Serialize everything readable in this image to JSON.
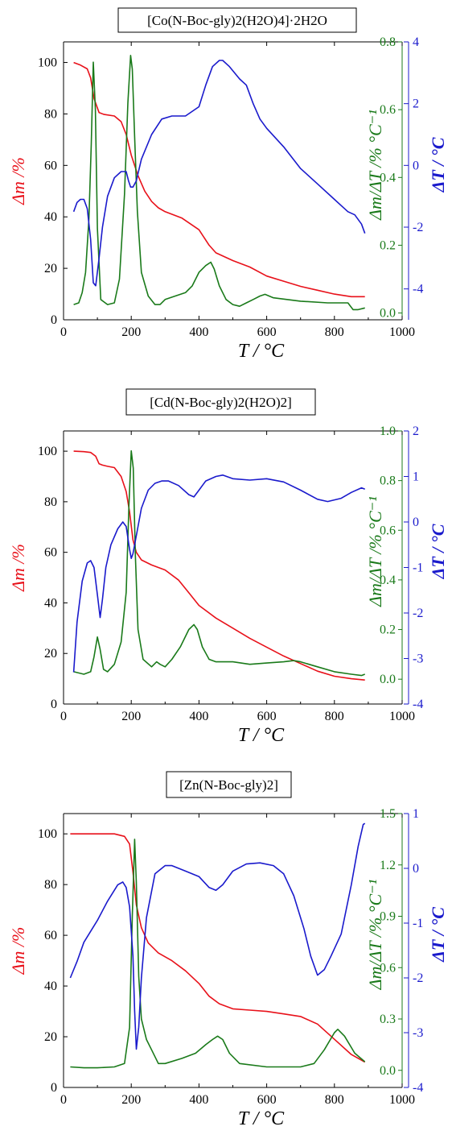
{
  "chart_data": [
    {
      "type": "line",
      "title": "[Co(N-Boc-gly)2(H2O)4]·2H2O",
      "xlabel": "T / °C",
      "ylabel_left": "Δm /%",
      "ylabel_right1": "Δm/ΔT /% °C⁻¹",
      "ylabel_right2": "ΔT / °C",
      "xlim": [
        0,
        1000
      ],
      "ylim_left": [
        0,
        108
      ],
      "ylim_right1": [
        -0.02,
        0.8
      ],
      "ylim_right2": [
        -5,
        4
      ],
      "xticks": [
        0,
        200,
        400,
        600,
        800,
        1000
      ],
      "yticks_left": [
        0,
        20,
        40,
        60,
        80,
        100
      ],
      "yticks_right1": [
        "0.0",
        "0.2",
        "0.4",
        "0.6",
        "0.8"
      ],
      "yticks_right2": [
        "-4",
        "-2",
        "0",
        "2",
        "4"
      ],
      "series": [
        {
          "name": "Δm",
          "axis": "left",
          "color": "#e8111a",
          "x": [
            30,
            50,
            70,
            80,
            90,
            105,
            120,
            150,
            170,
            185,
            200,
            220,
            240,
            260,
            280,
            300,
            350,
            400,
            430,
            450,
            500,
            550,
            600,
            650,
            700,
            750,
            800,
            850,
            890
          ],
          "y": [
            100,
            99,
            97.5,
            94,
            86,
            80.5,
            79.8,
            79.2,
            77,
            72,
            64,
            56,
            50,
            46,
            43.5,
            42,
            39.5,
            35,
            29,
            26,
            23,
            20.5,
            17,
            15,
            13,
            11.5,
            10,
            9,
            9
          ]
        },
        {
          "name": "Δm/ΔT",
          "axis": "right1",
          "color": "#1a7a1a",
          "x": [
            30,
            45,
            55,
            65,
            75,
            82,
            88,
            94,
            100,
            110,
            130,
            150,
            165,
            180,
            190,
            198,
            203,
            210,
            218,
            230,
            250,
            270,
            285,
            300,
            330,
            360,
            380,
            400,
            420,
            435,
            445,
            460,
            480,
            500,
            520,
            540,
            560,
            580,
            595,
            620,
            700,
            780,
            840,
            855,
            870,
            890
          ],
          "y": [
            0.025,
            0.03,
            0.06,
            0.12,
            0.28,
            0.5,
            0.74,
            0.6,
            0.25,
            0.04,
            0.025,
            0.03,
            0.1,
            0.35,
            0.62,
            0.76,
            0.72,
            0.52,
            0.3,
            0.12,
            0.05,
            0.025,
            0.025,
            0.04,
            0.05,
            0.06,
            0.08,
            0.12,
            0.14,
            0.15,
            0.13,
            0.08,
            0.04,
            0.025,
            0.02,
            0.03,
            0.04,
            0.05,
            0.055,
            0.045,
            0.035,
            0.03,
            0.03,
            0.01,
            0.01,
            0.015
          ]
        },
        {
          "name": "ΔT",
          "axis": "right2",
          "color": "#1a1acc",
          "x": [
            30,
            40,
            50,
            60,
            70,
            80,
            88,
            95,
            105,
            115,
            130,
            150,
            170,
            185,
            192,
            198,
            205,
            215,
            230,
            260,
            290,
            320,
            360,
            400,
            420,
            440,
            460,
            470,
            490,
            520,
            540,
            560,
            580,
            600,
            650,
            700,
            750,
            800,
            820,
            840,
            860,
            880,
            890
          ],
          "y": [
            -1.5,
            -1.2,
            -1.1,
            -1.1,
            -1.4,
            -2.4,
            -3.8,
            -3.9,
            -3.0,
            -2.0,
            -1.0,
            -0.4,
            -0.2,
            -0.2,
            -0.5,
            -0.7,
            -0.7,
            -0.5,
            0.2,
            1.0,
            1.5,
            1.6,
            1.6,
            1.9,
            2.6,
            3.2,
            3.4,
            3.4,
            3.2,
            2.8,
            2.6,
            2.0,
            1.5,
            1.2,
            0.6,
            -0.1,
            -0.6,
            -1.1,
            -1.3,
            -1.5,
            -1.6,
            -1.9,
            -2.2
          ]
        }
      ]
    },
    {
      "type": "line",
      "title": "[Cd(N-Boc-gly)2(H2O)2]",
      "xlabel": "T / °C",
      "ylabel_left": "Δm /%",
      "ylabel_right1": "Δm/ΔT /% °C⁻¹",
      "ylabel_right2": "ΔT / °C",
      "xlim": [
        0,
        1000
      ],
      "ylim_left": [
        0,
        108
      ],
      "ylim_right1": [
        -0.1,
        1.0
      ],
      "ylim_right2": [
        -4,
        2
      ],
      "xticks": [
        0,
        200,
        400,
        600,
        800,
        1000
      ],
      "yticks_left": [
        0,
        20,
        40,
        60,
        80,
        100
      ],
      "yticks_right1": [
        "0.0",
        "0.2",
        "0.4",
        "0.6",
        "0.8",
        "1.0"
      ],
      "yticks_right2": [
        "-4",
        "-3",
        "-2",
        "-1",
        "0",
        "1",
        "2"
      ],
      "series": [
        {
          "name": "Δm",
          "axis": "left",
          "color": "#e8111a",
          "x": [
            30,
            60,
            80,
            95,
            105,
            115,
            130,
            150,
            170,
            185,
            195,
            205,
            215,
            230,
            260,
            300,
            340,
            370,
            400,
            450,
            500,
            550,
            600,
            650,
            700,
            750,
            800,
            850,
            890
          ],
          "y": [
            100,
            99.8,
            99.5,
            98,
            95,
            94.5,
            94,
            93.5,
            90,
            84,
            76,
            65,
            60,
            57,
            55,
            53,
            49,
            44,
            39,
            34,
            30,
            26,
            22.5,
            19,
            16,
            13,
            11,
            10,
            9.5
          ]
        },
        {
          "name": "Δm/ΔT",
          "axis": "right1",
          "color": "#1a7a1a",
          "x": [
            30,
            60,
            80,
            90,
            100,
            108,
            118,
            130,
            150,
            170,
            185,
            193,
            200,
            206,
            212,
            220,
            235,
            260,
            275,
            285,
            300,
            320,
            345,
            370,
            385,
            395,
            410,
            430,
            450,
            500,
            550,
            600,
            650,
            680,
            700,
            750,
            800,
            850,
            880,
            890
          ],
          "y": [
            0.03,
            0.02,
            0.03,
            0.09,
            0.17,
            0.12,
            0.04,
            0.03,
            0.06,
            0.15,
            0.35,
            0.7,
            0.92,
            0.85,
            0.5,
            0.2,
            0.08,
            0.05,
            0.07,
            0.06,
            0.05,
            0.08,
            0.13,
            0.2,
            0.22,
            0.2,
            0.13,
            0.08,
            0.07,
            0.07,
            0.06,
            0.065,
            0.07,
            0.075,
            0.07,
            0.05,
            0.03,
            0.02,
            0.015,
            0.02
          ]
        },
        {
          "name": "ΔT",
          "axis": "right2",
          "color": "#1a1acc",
          "x": [
            30,
            40,
            55,
            70,
            80,
            90,
            100,
            108,
            115,
            125,
            140,
            160,
            175,
            185,
            195,
            200,
            205,
            215,
            230,
            250,
            270,
            290,
            310,
            340,
            370,
            385,
            400,
            420,
            450,
            470,
            500,
            550,
            600,
            650,
            700,
            750,
            780,
            820,
            850,
            880,
            890
          ],
          "y": [
            -3.3,
            -2.2,
            -1.3,
            -0.9,
            -0.85,
            -1.0,
            -1.6,
            -2.1,
            -1.7,
            -1.0,
            -0.5,
            -0.15,
            0.0,
            -0.1,
            -0.6,
            -0.8,
            -0.7,
            -0.3,
            0.3,
            0.7,
            0.85,
            0.9,
            0.9,
            0.8,
            0.6,
            0.55,
            0.7,
            0.9,
            1.0,
            1.03,
            0.95,
            0.92,
            0.95,
            0.88,
            0.7,
            0.5,
            0.45,
            0.52,
            0.65,
            0.75,
            0.72
          ]
        }
      ]
    },
    {
      "type": "line",
      "title": "[Zn(N-Boc-gly)2]",
      "xlabel": "T / °C",
      "ylabel_left": "Δm /%",
      "ylabel_right1": "Δm/ΔT /% °C⁻¹",
      "ylabel_right2": "ΔT / °C",
      "xlim": [
        0,
        1000
      ],
      "ylim_left": [
        0,
        108
      ],
      "ylim_right1": [
        -0.1,
        1.5
      ],
      "ylim_right2": [
        -4,
        1
      ],
      "xticks": [
        0,
        200,
        400,
        600,
        800,
        1000
      ],
      "yticks_left": [
        0,
        20,
        40,
        60,
        80,
        100
      ],
      "yticks_right1": [
        "0.0",
        "0.3",
        "0.6",
        "0.9",
        "1.2",
        "1.5"
      ],
      "yticks_right2": [
        "-4",
        "-3",
        "-2",
        "-1",
        "0",
        "1"
      ],
      "series": [
        {
          "name": "Δm",
          "axis": "left",
          "color": "#e8111a",
          "x": [
            20,
            60,
            100,
            150,
            180,
            195,
            205,
            215,
            230,
            250,
            280,
            320,
            360,
            400,
            430,
            460,
            500,
            550,
            600,
            650,
            700,
            750,
            800,
            850,
            890
          ],
          "y": [
            100,
            100,
            100,
            100,
            99,
            96,
            85,
            72,
            63,
            57,
            53,
            50,
            46,
            41,
            36,
            33,
            31,
            30.5,
            30,
            29,
            28,
            25,
            19,
            13,
            10
          ]
        },
        {
          "name": "Δm/ΔT",
          "axis": "right1",
          "color": "#1a7a1a",
          "x": [
            20,
            60,
            100,
            150,
            180,
            195,
            203,
            210,
            215,
            222,
            230,
            245,
            260,
            280,
            300,
            350,
            390,
            420,
            440,
            455,
            470,
            490,
            520,
            600,
            700,
            740,
            770,
            800,
            810,
            830,
            860,
            890
          ],
          "y": [
            0.02,
            0.015,
            0.015,
            0.02,
            0.04,
            0.25,
            0.9,
            1.35,
            1.1,
            0.55,
            0.3,
            0.18,
            0.12,
            0.04,
            0.04,
            0.07,
            0.1,
            0.15,
            0.18,
            0.2,
            0.18,
            0.1,
            0.04,
            0.02,
            0.02,
            0.04,
            0.12,
            0.22,
            0.24,
            0.2,
            0.1,
            0.05
          ]
        },
        {
          "name": "ΔT",
          "axis": "right2",
          "color": "#1a1acc",
          "x": [
            20,
            40,
            60,
            80,
            100,
            130,
            160,
            175,
            185,
            195,
            205,
            210,
            215,
            222,
            230,
            245,
            270,
            300,
            320,
            360,
            400,
            430,
            450,
            470,
            500,
            540,
            580,
            620,
            650,
            680,
            710,
            730,
            750,
            770,
            790,
            820,
            850,
            870,
            885,
            890
          ],
          "y": [
            -2.0,
            -1.7,
            -1.35,
            -1.15,
            -0.95,
            -0.6,
            -0.3,
            -0.25,
            -0.35,
            -0.7,
            -1.6,
            -2.6,
            -3.3,
            -2.9,
            -2.0,
            -0.9,
            -0.1,
            0.05,
            0.05,
            -0.05,
            -0.15,
            -0.35,
            -0.4,
            -0.3,
            -0.05,
            0.08,
            0.1,
            0.05,
            -0.1,
            -0.5,
            -1.1,
            -1.6,
            -1.95,
            -1.85,
            -1.6,
            -1.2,
            -0.3,
            0.4,
            0.8,
            0.82
          ]
        }
      ]
    }
  ]
}
